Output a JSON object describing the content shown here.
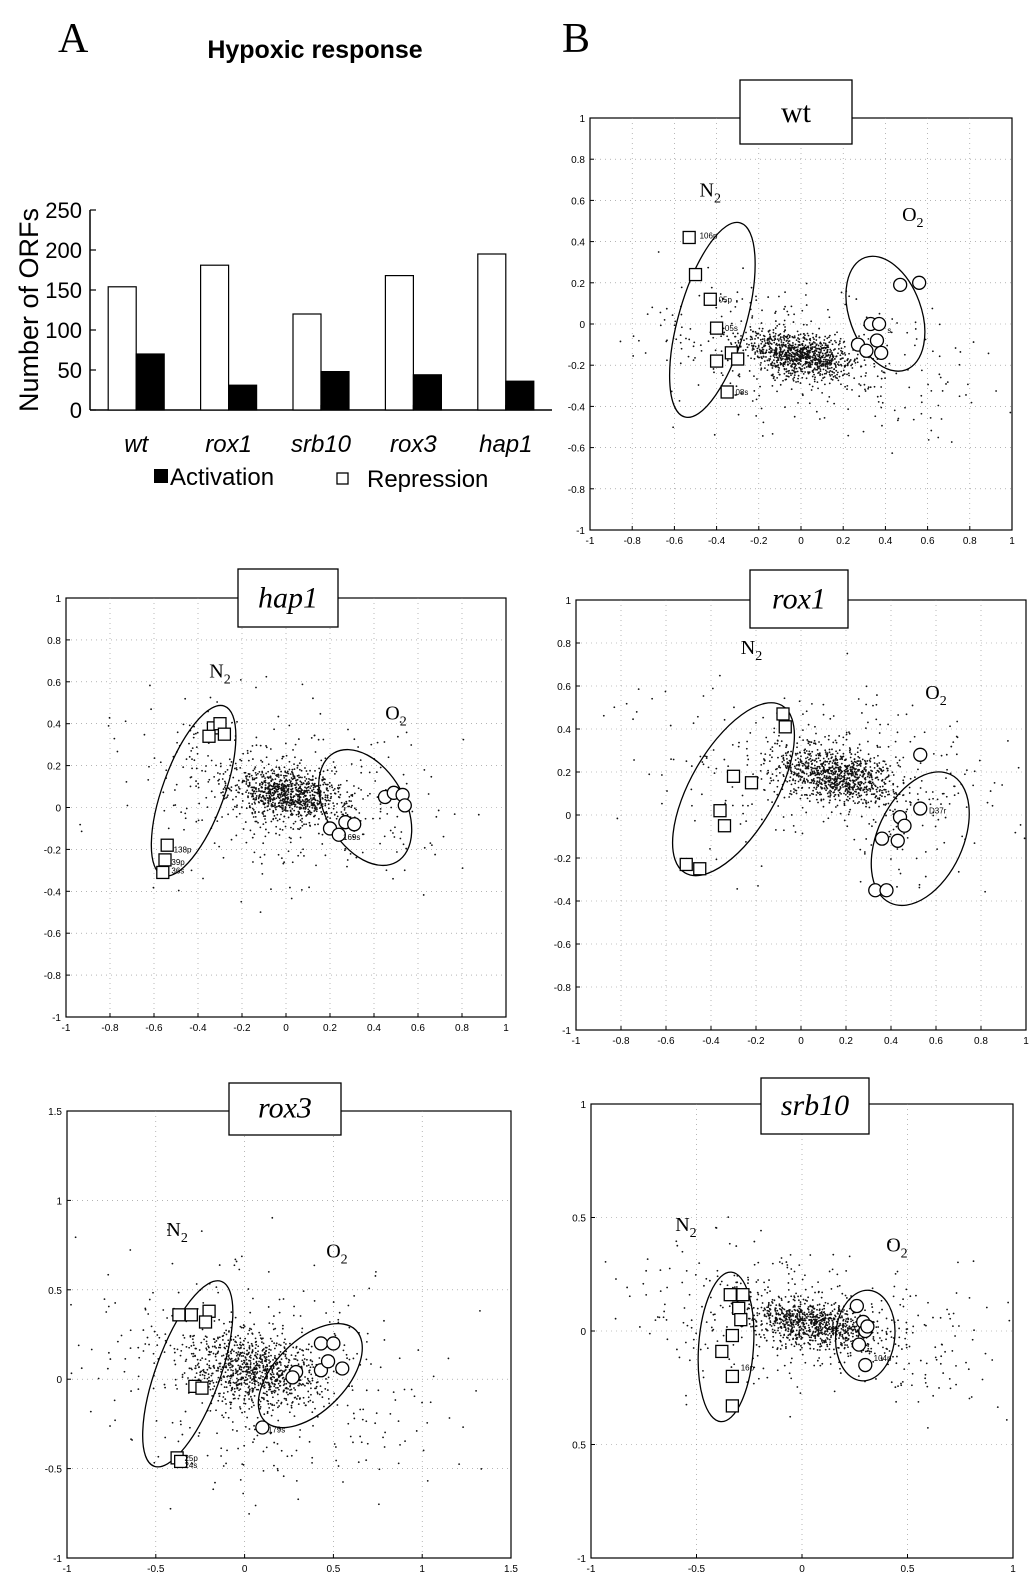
{
  "panel_letters": {
    "a": "A",
    "b": "B"
  },
  "chart_data": [
    {
      "id": "bar",
      "type": "bar",
      "title": "Hypoxic response",
      "ylabel": "Number of ORFs",
      "xlabel": "",
      "categories": [
        "wt",
        "rox1",
        "srb10",
        "rox3",
        "hap1"
      ],
      "series": [
        {
          "name": "Repression",
          "values": [
            154,
            181,
            120,
            168,
            195
          ]
        },
        {
          "name": "Activation",
          "values": [
            70,
            31,
            48,
            44,
            36
          ]
        }
      ],
      "ylim": [
        0,
        250
      ],
      "yticks": [
        "0",
        "50",
        "100",
        "150",
        "200",
        "250"
      ],
      "legend": {
        "placement": "bottom",
        "activation": "Activation",
        "repression": "Repression"
      }
    },
    {
      "id": "wt",
      "type": "scatter",
      "title": "wt",
      "xlim": [
        -1,
        1
      ],
      "ylim": [
        -1,
        1
      ],
      "xticks": [
        "-1",
        "-0.8",
        "-0.6",
        "-0.4",
        "-0.2",
        "0",
        "0.2",
        "0.4",
        "0.6",
        "0.8",
        "1"
      ],
      "yticks": [
        "-1",
        "-0.8",
        "-0.6",
        "-0.4",
        "-0.2",
        "0",
        "0.2",
        "0.4",
        "0.6",
        "0.8",
        "1"
      ],
      "grid": true,
      "cluster": {
        "cx": 0.0,
        "cy": -0.15,
        "sx": 0.13,
        "sy": 0.05
      },
      "n2_label": "N",
      "o2_label": "O",
      "subscript": "2",
      "n2_label_pos": [
        -0.43,
        0.62
      ],
      "o2_label_pos": [
        0.53,
        0.5
      ],
      "ellipse_n2": {
        "cx": -0.42,
        "cy": 0.02,
        "rx": 0.16,
        "ry": 0.49,
        "angle": 16
      },
      "ellipse_o2": {
        "cx": 0.4,
        "cy": 0.05,
        "rx": 0.17,
        "ry": 0.29,
        "angle": -20
      },
      "squares": [
        [
          -0.53,
          0.42
        ],
        [
          -0.5,
          0.24
        ],
        [
          -0.43,
          0.12
        ],
        [
          -0.4,
          -0.02
        ],
        [
          -0.4,
          -0.18
        ],
        [
          -0.33,
          -0.14
        ],
        [
          -0.3,
          -0.17
        ],
        [
          -0.35,
          -0.33
        ]
      ],
      "circles": [
        [
          0.47,
          0.19
        ],
        [
          0.56,
          0.2
        ],
        [
          0.33,
          0.0
        ],
        [
          0.37,
          0.0
        ],
        [
          0.27,
          -0.1
        ],
        [
          0.31,
          -0.13
        ],
        [
          0.36,
          -0.08
        ],
        [
          0.38,
          -0.14
        ]
      ],
      "point_labels": [
        {
          "text": "106p",
          "x": -0.49,
          "y": 0.43
        },
        {
          "text": "05p",
          "x": -0.4,
          "y": 0.12
        },
        {
          "text": "05s",
          "x": -0.37,
          "y": -0.02
        },
        {
          "text": "08s",
          "x": -0.32,
          "y": -0.33
        },
        {
          "text": "s",
          "x": 0.4,
          "y": -0.03
        }
      ]
    },
    {
      "id": "hap1",
      "type": "scatter",
      "title": "hap1",
      "xlim": [
        -1,
        1
      ],
      "ylim": [
        -1,
        1
      ],
      "xticks": [
        "-1",
        "-0.8",
        "-0.6",
        "-0.4",
        "-0.2",
        "0",
        "0.2",
        "0.4",
        "0.6",
        "0.8",
        "1"
      ],
      "yticks": [
        "-1",
        "-0.8",
        "-0.6",
        "-0.4",
        "-0.2",
        "0",
        "0.2",
        "0.4",
        "0.6",
        "0.8",
        "1"
      ],
      "grid": true,
      "cluster": {
        "cx": 0.0,
        "cy": 0.07,
        "sx": 0.12,
        "sy": 0.06
      },
      "n2_label": "N",
      "o2_label": "O",
      "subscript": "2",
      "n2_label_pos": [
        -0.3,
        0.62
      ],
      "o2_label_pos": [
        0.5,
        0.42
      ],
      "ellipse_n2": {
        "cx": -0.42,
        "cy": 0.08,
        "rx": 0.14,
        "ry": 0.43,
        "angle": 20
      },
      "ellipse_o2": {
        "cx": 0.36,
        "cy": 0.0,
        "rx": 0.18,
        "ry": 0.3,
        "angle": -30
      },
      "squares": [
        [
          -0.33,
          0.38
        ],
        [
          -0.3,
          0.4
        ],
        [
          -0.35,
          0.34
        ],
        [
          -0.28,
          0.35
        ],
        [
          -0.54,
          -0.18
        ],
        [
          -0.55,
          -0.25
        ],
        [
          -0.56,
          -0.31
        ]
      ],
      "circles": [
        [
          0.45,
          0.05
        ],
        [
          0.49,
          0.07
        ],
        [
          0.53,
          0.06
        ],
        [
          0.54,
          0.01
        ],
        [
          0.2,
          -0.1
        ],
        [
          0.24,
          -0.13
        ],
        [
          0.27,
          -0.07
        ],
        [
          0.31,
          -0.08
        ]
      ],
      "point_labels": [
        {
          "text": "138p",
          "x": -0.52,
          "y": -0.2
        },
        {
          "text": "39p",
          "x": -0.53,
          "y": -0.26
        },
        {
          "text": "36s",
          "x": -0.53,
          "y": -0.3
        },
        {
          "text": "169s",
          "x": 0.25,
          "y": -0.14
        }
      ]
    },
    {
      "id": "rox1",
      "type": "scatter",
      "title": "rox1",
      "xlim": [
        -1,
        1
      ],
      "ylim": [
        -1,
        1
      ],
      "xticks": [
        "-1",
        "-0.8",
        "-0.6",
        "-0.4",
        "-0.2",
        "0",
        "0.2",
        "0.4",
        "0.6",
        "0.8",
        "1"
      ],
      "yticks": [
        "-1",
        "-0.8",
        "-0.6",
        "-0.4",
        "-0.2",
        "0",
        "0.2",
        "0.4",
        "0.6",
        "0.8",
        "1"
      ],
      "grid": true,
      "cluster": {
        "cx": 0.16,
        "cy": 0.18,
        "sx": 0.14,
        "sy": 0.06
      },
      "n2_label": "N",
      "o2_label": "O",
      "subscript": "2",
      "n2_label_pos": [
        -0.22,
        0.75
      ],
      "o2_label_pos": [
        0.6,
        0.54
      ],
      "ellipse_n2": {
        "cx": -0.3,
        "cy": 0.12,
        "rx": 0.19,
        "ry": 0.45,
        "angle": 30
      },
      "ellipse_o2": {
        "cx": 0.53,
        "cy": -0.11,
        "rx": 0.19,
        "ry": 0.33,
        "angle": 25
      },
      "squares": [
        [
          -0.08,
          0.47
        ],
        [
          -0.07,
          0.41
        ],
        [
          -0.3,
          0.18
        ],
        [
          -0.22,
          0.15
        ],
        [
          -0.36,
          0.02
        ],
        [
          -0.34,
          -0.05
        ],
        [
          -0.51,
          -0.23
        ],
        [
          -0.45,
          -0.25
        ]
      ],
      "circles": [
        [
          0.53,
          0.28
        ],
        [
          0.53,
          0.03
        ],
        [
          0.44,
          -0.01
        ],
        [
          0.46,
          -0.05
        ],
        [
          0.36,
          -0.11
        ],
        [
          0.43,
          -0.12
        ],
        [
          0.33,
          -0.35
        ],
        [
          0.38,
          -0.35
        ]
      ],
      "point_labels": [
        {
          "text": "D37r",
          "x": 0.56,
          "y": 0.02
        }
      ]
    },
    {
      "id": "rox3",
      "type": "scatter",
      "title": "rox3",
      "xlim": [
        -1,
        1.5
      ],
      "ylim": [
        -1,
        1.5
      ],
      "xticks": [
        "-1",
        "-0.5",
        "0",
        "0.5",
        "1",
        "1.5"
      ],
      "yticks": [
        "-1",
        "-0.5",
        "0",
        "0.5",
        "1",
        "1.5"
      ],
      "grid": true,
      "cluster": {
        "cx": 0.05,
        "cy": 0.05,
        "sx": 0.18,
        "sy": 0.1
      },
      "n2_label": "N",
      "o2_label": "O",
      "subscript": "2",
      "n2_label_pos": [
        -0.38,
        0.8
      ],
      "o2_label_pos": [
        0.52,
        0.68
      ],
      "ellipse_n2": {
        "cx": -0.32,
        "cy": 0.03,
        "rx": 0.18,
        "ry": 0.55,
        "angle": 20
      },
      "ellipse_o2": {
        "cx": 0.37,
        "cy": 0.02,
        "rx": 0.2,
        "ry": 0.36,
        "angle": 45
      },
      "squares": [
        [
          -0.37,
          0.36
        ],
        [
          -0.3,
          0.36
        ],
        [
          -0.2,
          0.38
        ],
        [
          -0.22,
          0.32
        ],
        [
          -0.28,
          -0.04
        ],
        [
          -0.24,
          -0.05
        ],
        [
          -0.38,
          -0.44
        ],
        [
          -0.36,
          -0.46
        ]
      ],
      "circles": [
        [
          0.43,
          0.2
        ],
        [
          0.5,
          0.2
        ],
        [
          0.29,
          0.04
        ],
        [
          0.27,
          0.01
        ],
        [
          0.43,
          0.05
        ],
        [
          0.47,
          0.1
        ],
        [
          0.55,
          0.06
        ],
        [
          0.1,
          -0.27
        ]
      ],
      "point_labels": [
        {
          "text": "25p",
          "x": -0.35,
          "y": -0.44
        },
        {
          "text": "24s",
          "x": -0.35,
          "y": -0.48
        },
        {
          "text": "179s",
          "x": 0.12,
          "y": -0.28
        }
      ]
    },
    {
      "id": "srb10",
      "type": "scatter",
      "title": "srb10",
      "xlim": [
        -1,
        1
      ],
      "ylim": [
        -1,
        1
      ],
      "xticks": [
        "-1",
        "-0.5",
        "0",
        "0.5",
        "1"
      ],
      "yticks": [
        "-1",
        "0.5",
        "0",
        "0.5",
        "1"
      ],
      "grid": true,
      "cluster": {
        "cx": 0.05,
        "cy": 0.03,
        "sx": 0.16,
        "sy": 0.05
      },
      "n2_label": "N",
      "o2_label": "O",
      "subscript": "2",
      "n2_label_pos": [
        -0.55,
        0.44
      ],
      "o2_label_pos": [
        0.45,
        0.35
      ],
      "ellipse_n2": {
        "cx": -0.36,
        "cy": -0.07,
        "rx": 0.13,
        "ry": 0.33,
        "angle": 4
      },
      "ellipse_o2": {
        "cx": 0.3,
        "cy": -0.02,
        "rx": 0.14,
        "ry": 0.2,
        "angle": 5
      },
      "squares": [
        [
          -0.34,
          0.16
        ],
        [
          -0.28,
          0.16
        ],
        [
          -0.3,
          0.1
        ],
        [
          -0.29,
          0.05
        ],
        [
          -0.33,
          -0.02
        ],
        [
          -0.38,
          -0.09
        ],
        [
          -0.33,
          -0.2
        ],
        [
          -0.33,
          -0.33
        ]
      ],
      "circles": [
        [
          0.26,
          0.11
        ],
        [
          0.29,
          0.04
        ],
        [
          0.3,
          0.0
        ],
        [
          0.27,
          -0.06
        ],
        [
          0.3,
          -0.15
        ],
        [
          0.31,
          0.02
        ]
      ],
      "point_labels": [
        {
          "text": "16p",
          "x": -0.3,
          "y": -0.16
        },
        {
          "text": "104p",
          "x": 0.33,
          "y": -0.12
        }
      ]
    }
  ]
}
